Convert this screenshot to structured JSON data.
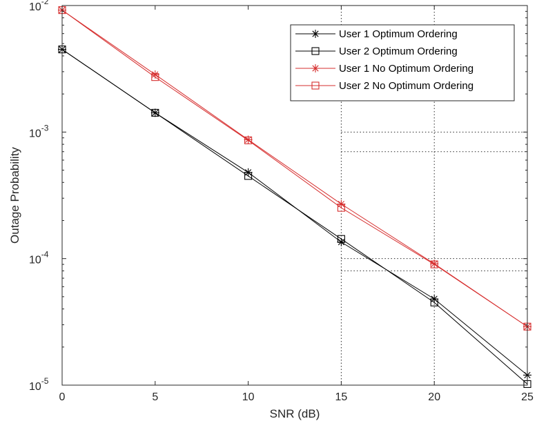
{
  "chart_data": {
    "type": "line",
    "title": "",
    "xlabel": "SNR (dB)",
    "ylabel": "Outage Probability",
    "x": [
      0,
      5,
      10,
      15,
      20,
      25
    ],
    "xlim": [
      0,
      25
    ],
    "ylim": [
      1e-05,
      0.01
    ],
    "yscale": "log",
    "xticks": [
      "0",
      "5",
      "10",
      "15",
      "20",
      "25"
    ],
    "yticks": [
      {
        "base": "10",
        "exp": "-5"
      },
      {
        "base": "10",
        "exp": "-4"
      },
      {
        "base": "10",
        "exp": "-3"
      },
      {
        "base": "10",
        "exp": "-2"
      }
    ],
    "grid": "partial-dotted",
    "legend_position": "top-right",
    "series": [
      {
        "name": "User 1 Optimum Ordering",
        "color": "#000000",
        "marker": "asterisk",
        "values": [
          0.0045,
          0.00142,
          0.00048,
          0.000135,
          4.8e-05,
          1.2e-05
        ]
      },
      {
        "name": "User 2 Optimum Ordering",
        "color": "#000000",
        "marker": "square",
        "values": [
          0.0045,
          0.00142,
          0.00045,
          0.000143,
          4.5e-05,
          1.02e-05
        ]
      },
      {
        "name": "User 1 No Optimum Ordering",
        "color": "#d62d2d",
        "marker": "asterisk",
        "values": [
          0.0092,
          0.00285,
          0.00087,
          0.00027,
          9.1e-05,
          2.9e-05
        ]
      },
      {
        "name": "User 2 No Optimum Ordering",
        "color": "#d62d2d",
        "marker": "square",
        "values": [
          0.0092,
          0.00272,
          0.00086,
          0.000252,
          9e-05,
          2.9e-05
        ]
      }
    ]
  }
}
